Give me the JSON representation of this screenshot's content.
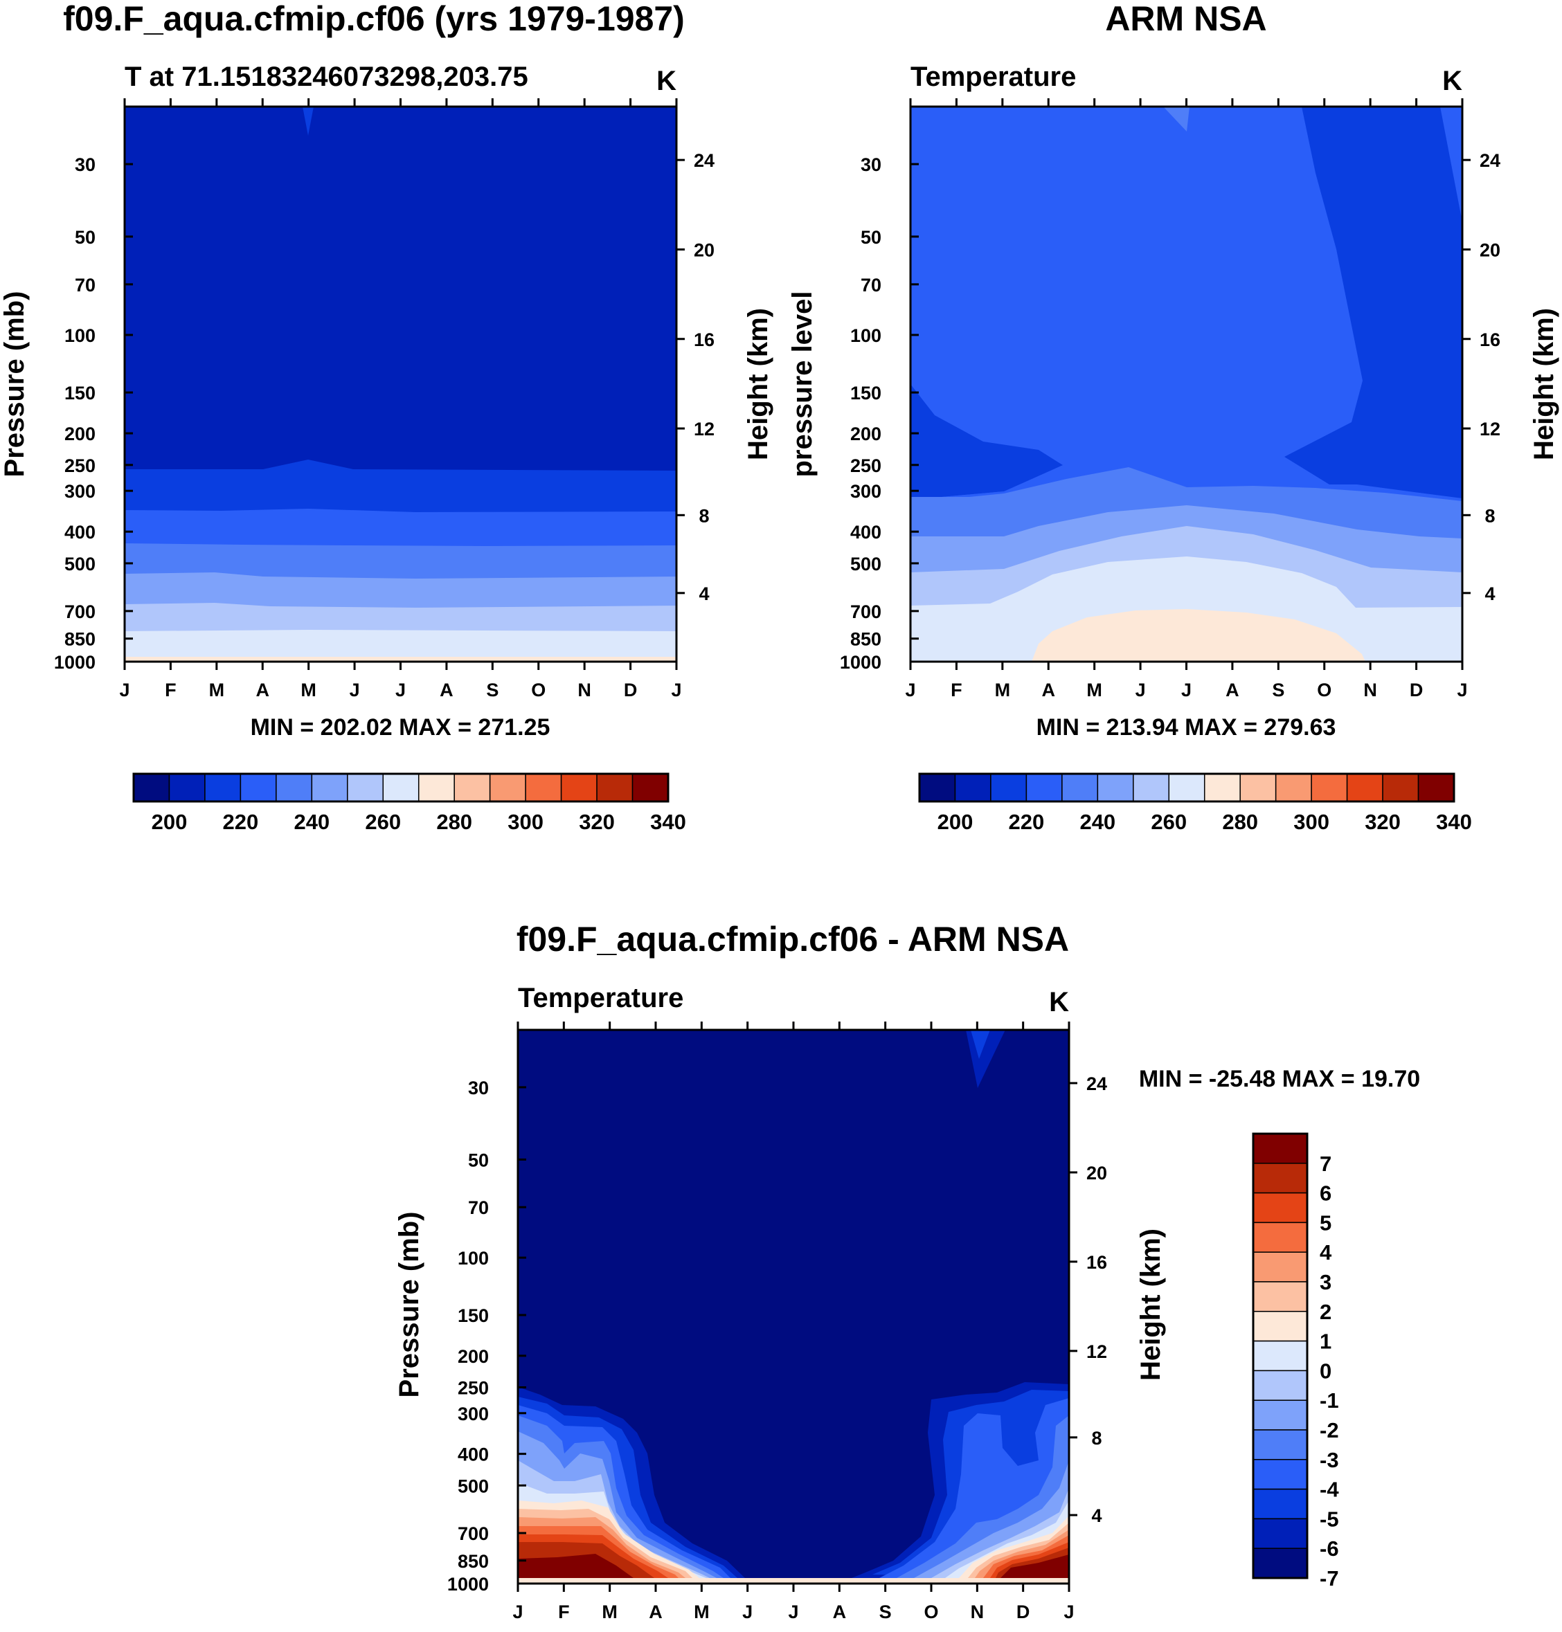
{
  "chart_data": [
    {
      "type": "contour",
      "title": "f09.F_aqua.cfmip.cf06 (yrs 1979-1987)",
      "subtitle_left": "T at 71.15183246073298,203.75",
      "units": "K",
      "ylabel": "Pressure (mb)",
      "ylabel_right": "Height (km)",
      "pressure_ticks": [
        "30",
        "50",
        "70",
        "100",
        "150",
        "200",
        "250",
        "300",
        "400",
        "500",
        "700",
        "850",
        "1000"
      ],
      "height_ticks": [
        "24",
        "20",
        "16",
        "12",
        "8",
        "4"
      ],
      "month_ticks": [
        "J",
        "F",
        "M",
        "A",
        "M",
        "J",
        "J",
        "A",
        "S",
        "O",
        "N",
        "D",
        "J"
      ],
      "stats": "MIN = 202.02 MAX = 271.25",
      "min": 202.02,
      "max": 271.25,
      "colorbar": {
        "orientation": "horizontal",
        "levels": [
          195,
          200,
          205,
          210,
          215,
          220,
          225,
          230,
          235,
          240,
          245,
          250,
          255,
          260,
          265,
          270,
          275,
          280,
          285,
          290,
          295,
          300,
          305,
          310,
          315,
          320,
          325,
          330,
          335,
          340,
          345
        ],
        "labels": [
          "200",
          "220",
          "240",
          "260",
          "280",
          "300",
          "320",
          "340"
        ],
        "colors": [
          "#000c80",
          "#0020b8",
          "#0a3ee0",
          "#2a5ef8",
          "#4f7ef8",
          "#7ea2fa",
          "#b0c6fb",
          "#dce8fc",
          "#fde8d8",
          "#fcc1a3",
          "#f99a72",
          "#f46c3e",
          "#e44416",
          "#b82a08",
          "#800000"
        ]
      }
    },
    {
      "type": "contour",
      "title": "ARM NSA",
      "subtitle_left": "Temperature",
      "units": "K",
      "ylabel": "pressure level",
      "ylabel_right": "Height (km)",
      "pressure_ticks": [
        "30",
        "50",
        "70",
        "100",
        "150",
        "200",
        "250",
        "300",
        "400",
        "500",
        "700",
        "850",
        "1000"
      ],
      "height_ticks": [
        "24",
        "20",
        "16",
        "12",
        "8",
        "4"
      ],
      "month_ticks": [
        "J",
        "F",
        "M",
        "A",
        "M",
        "J",
        "J",
        "A",
        "S",
        "O",
        "N",
        "D",
        "J"
      ],
      "stats": "MIN = 213.94 MAX = 279.63",
      "min": 213.94,
      "max": 279.63,
      "colorbar": {
        "orientation": "horizontal",
        "labels": [
          "200",
          "220",
          "240",
          "260",
          "280",
          "300",
          "320",
          "340"
        ],
        "colors": [
          "#000c80",
          "#0020b8",
          "#0a3ee0",
          "#2a5ef8",
          "#4f7ef8",
          "#7ea2fa",
          "#b0c6fb",
          "#dce8fc",
          "#fde8d8",
          "#fcc1a3",
          "#f99a72",
          "#f46c3e",
          "#e44416",
          "#b82a08",
          "#800000"
        ]
      }
    },
    {
      "type": "contour",
      "title": "f09.F_aqua.cfmip.cf06 - ARM NSA",
      "subtitle_left": "Temperature",
      "units": "K",
      "ylabel": "Pressure (mb)",
      "ylabel_right": "Height (km)",
      "pressure_ticks": [
        "30",
        "50",
        "70",
        "100",
        "150",
        "200",
        "250",
        "300",
        "400",
        "500",
        "700",
        "850",
        "1000"
      ],
      "height_ticks": [
        "24",
        "20",
        "16",
        "12",
        "8",
        "4"
      ],
      "month_ticks": [
        "J",
        "F",
        "M",
        "A",
        "M",
        "J",
        "J",
        "A",
        "S",
        "O",
        "N",
        "D",
        "J"
      ],
      "stats": "MIN = -25.48 MAX =  19.70",
      "min": -25.48,
      "max": 19.7,
      "colorbar": {
        "orientation": "vertical",
        "labels": [
          "7",
          "6",
          "5",
          "4",
          "3",
          "2",
          "1",
          "0",
          "-1",
          "-2",
          "-3",
          "-4",
          "-5",
          "-6",
          "-7"
        ],
        "colors": [
          "#800000",
          "#b82a08",
          "#e44416",
          "#f46c3e",
          "#f99a72",
          "#fcc1a3",
          "#fde8d8",
          "#dce8fc",
          "#b0c6fb",
          "#7ea2fa",
          "#4f7ef8",
          "#2a5ef8",
          "#0a3ee0",
          "#0020b8",
          "#000c80"
        ]
      }
    }
  ]
}
